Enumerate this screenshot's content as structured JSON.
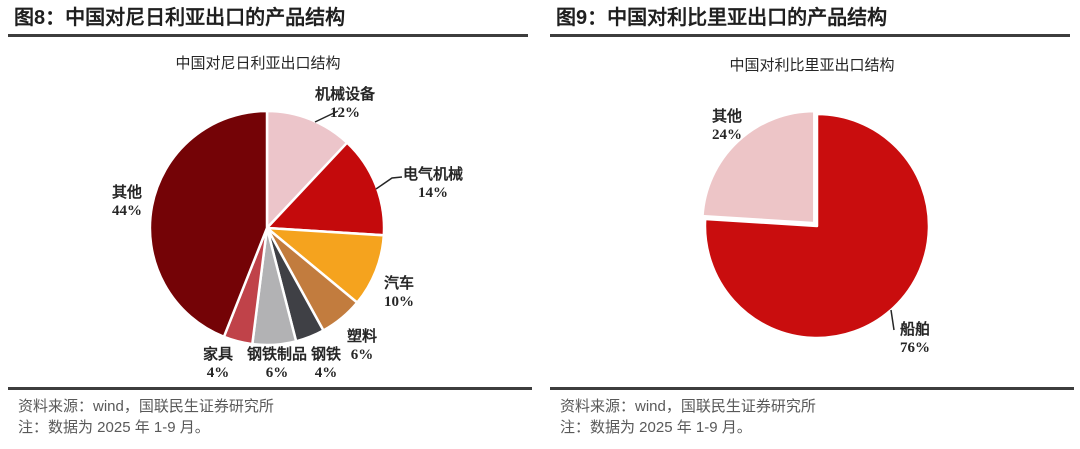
{
  "chart_data": [
    {
      "type": "pie",
      "figure_label": "图8：中国对尼日利亚出口的产品结构",
      "title": "中国对尼日利亚出口结构",
      "start_angle_deg": 0,
      "direction": "clockwise",
      "legend": "none",
      "slices": [
        {
          "label": "机械设备",
          "value": 12,
          "color": "#ECC5CA"
        },
        {
          "label": "电气机械",
          "value": 14,
          "color": "#C40A0C"
        },
        {
          "label": "汽车",
          "value": 10,
          "color": "#F5A31E"
        },
        {
          "label": "塑料",
          "value": 6,
          "color": "#C27C3E"
        },
        {
          "label": "钢铁",
          "value": 4,
          "color": "#3F4045"
        },
        {
          "label": "钢铁制品",
          "value": 6,
          "color": "#B2B2B4"
        },
        {
          "label": "家具",
          "value": 4,
          "color": "#C04249"
        },
        {
          "label": "其他",
          "value": 44,
          "color": "#740306"
        }
      ],
      "source": "资料来源：wind，国联民生证券研究所",
      "note": "注：数据为 2025 年 1-9 月。"
    },
    {
      "type": "pie",
      "figure_label": "图9：中国对利比里亚出口的产品结构",
      "title": "中国对利比里亚出口结构",
      "start_angle_deg": 0,
      "direction": "clockwise",
      "legend": "none",
      "slices": [
        {
          "label": "船舶",
          "value": 76,
          "color": "#C90D0E"
        },
        {
          "label": "其他",
          "value": 24,
          "color": "#EDC5C7",
          "exploded": true
        }
      ],
      "source": "资料来源：wind，国联民生证券研究所",
      "note": "注：数据为 2025 年 1-9 月。"
    }
  ],
  "styles": {
    "rule_color": "#3d3d3d",
    "header_text_color": "#1f1f1f",
    "footer_text_color": "#595959"
  }
}
